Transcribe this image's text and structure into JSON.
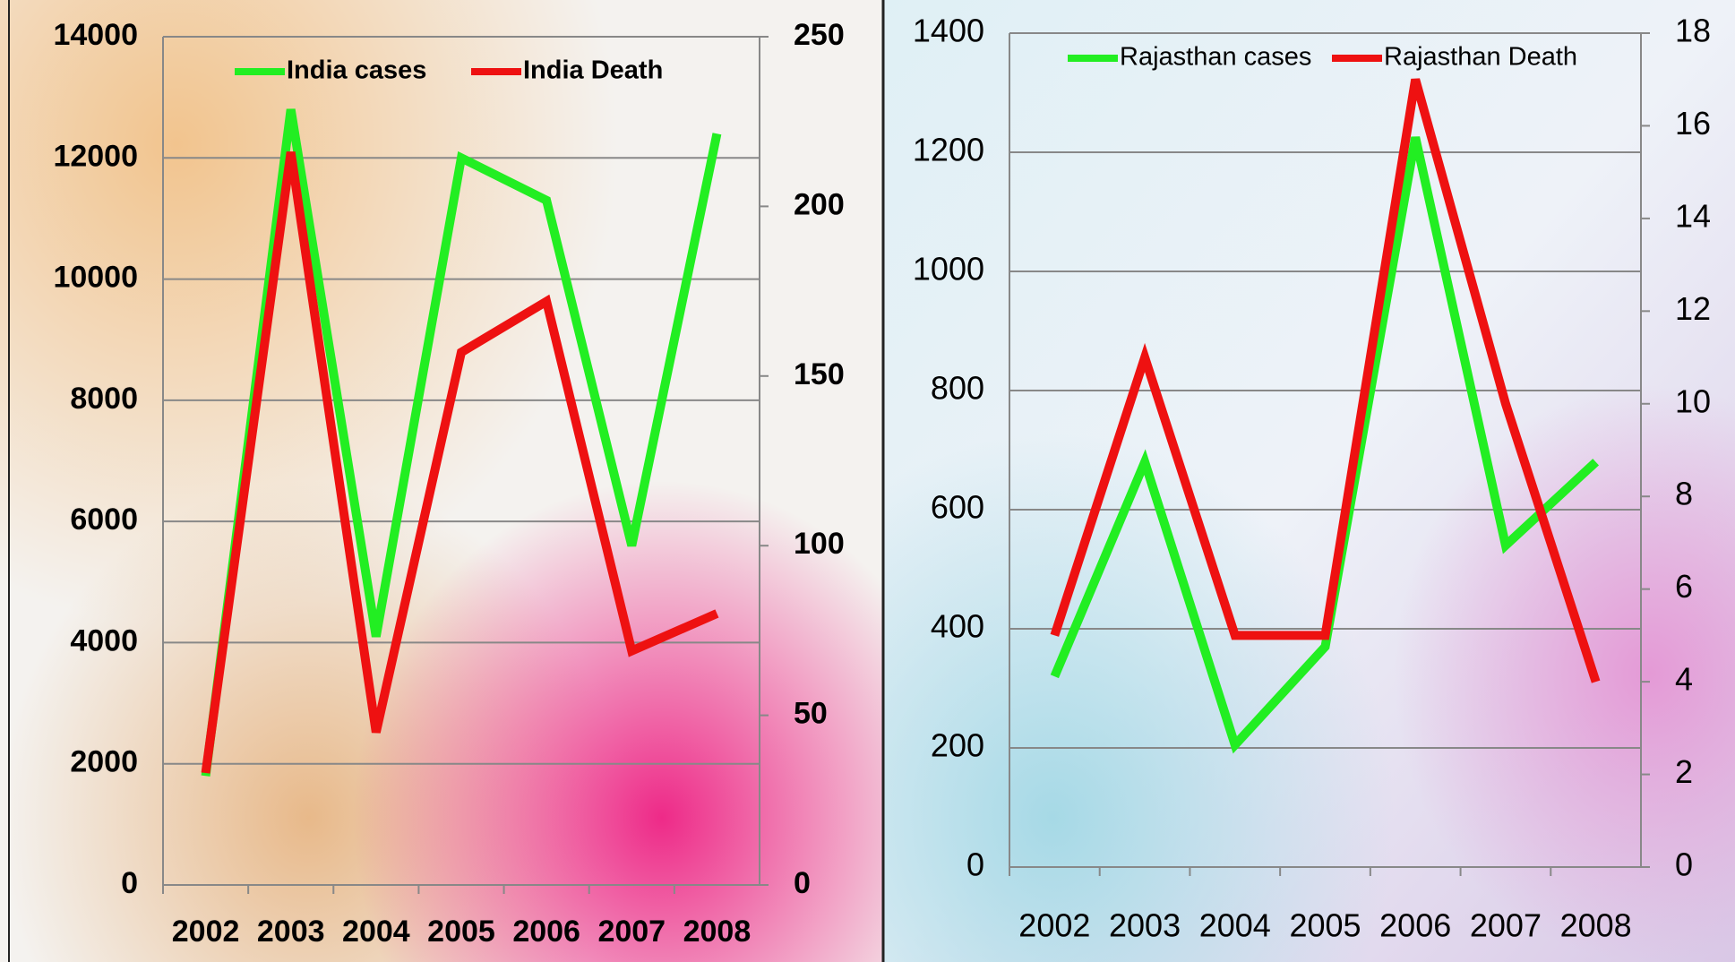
{
  "chart_data": [
    {
      "type": "line",
      "categories": [
        "2002",
        "2003",
        "2004",
        "2005",
        "2006",
        "2007",
        "2008"
      ],
      "series": [
        {
          "name": "India cases",
          "color": "#22ee22",
          "values": [
            1800,
            12800,
            4100,
            12000,
            11300,
            5600,
            12400
          ]
        },
        {
          "name": "India Death",
          "color": "#ee1111",
          "axis": "y2",
          "values": [
            33,
            216,
            45,
            157,
            172,
            69,
            80
          ]
        }
      ],
      "ylim": [
        0,
        14000
      ],
      "yticks": [
        0,
        2000,
        4000,
        6000,
        8000,
        10000,
        12000,
        14000
      ],
      "y2lim": [
        0,
        250
      ],
      "y2ticks": [
        0,
        50,
        100,
        150,
        200,
        250
      ],
      "grid": true
    },
    {
      "type": "line",
      "categories": [
        "2002",
        "2003",
        "2004",
        "2005",
        "2006",
        "2007",
        "2008"
      ],
      "series": [
        {
          "name": "Rajasthan cases",
          "color": "#22ee22",
          "values": [
            320,
            680,
            205,
            370,
            1225,
            540,
            680
          ]
        },
        {
          "name": "Rajasthan Death",
          "color": "#ee1111",
          "axis": "y2",
          "values": [
            5,
            11,
            5,
            5,
            17,
            10,
            4
          ]
        }
      ],
      "ylim": [
        0,
        1400
      ],
      "yticks": [
        0,
        200,
        400,
        600,
        800,
        1000,
        1200,
        1400
      ],
      "y2lim": [
        0,
        18
      ],
      "y2ticks": [
        0,
        2,
        4,
        6,
        8,
        10,
        12,
        14,
        16,
        18
      ],
      "grid": true
    }
  ]
}
